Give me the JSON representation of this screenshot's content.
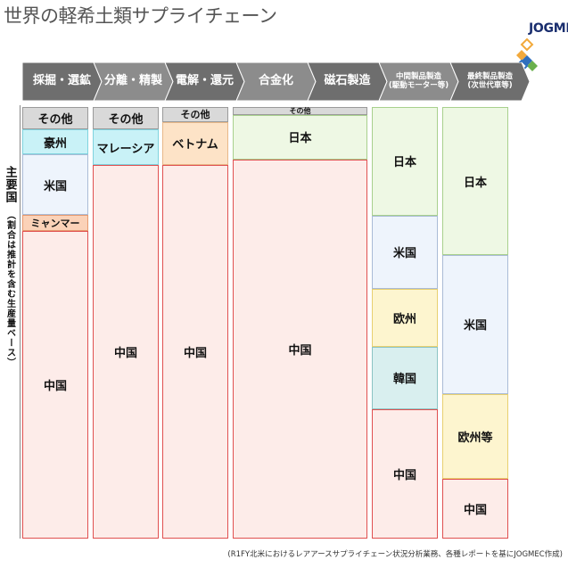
{
  "title": "世界の軽希土類サプライチェーン",
  "logo": {
    "text": "JOGMEC"
  },
  "side_label": {
    "main": "主要国",
    "sub": "（割合は推計を含む生産量ベース）"
  },
  "footer": "(R1FY北米におけるレアアースサプライチェーン状況分析業務、各種レポートを基にJOGMEC作成)",
  "colors": {
    "banner_dark": "#6e6e6e",
    "banner_light": "#8c8c8c",
    "other": "#d9d9d9",
    "australia": "#c9f2f7",
    "usa": "#eef4fc",
    "myanmar": "#fbd2b8",
    "china": "#fdece9",
    "malaysia": "#c9f2f7",
    "vietnam": "#fde3c7",
    "japan": "#eef8e4",
    "europe": "#fdf5cf",
    "korea": "#d9efef"
  },
  "stages": [
    {
      "label": "採掘・選鉱",
      "small": false
    },
    {
      "label": "分離・精製",
      "small": false
    },
    {
      "label": "電解・還元",
      "small": false
    },
    {
      "label": "合金化",
      "small": false
    },
    {
      "label": "磁石製造",
      "small": false
    },
    {
      "label": "中間製品製造\n(駆動モーター等)",
      "small": true
    },
    {
      "label": "最終製品製造\n(次世代車等)",
      "small": true
    }
  ],
  "columns": [
    {
      "stage": "採掘・選鉱",
      "segments": [
        {
          "label": "その他",
          "share": 0.052,
          "color_key": "other",
          "border": "#9a9a9a"
        },
        {
          "label": "豪州",
          "share": 0.058,
          "color_key": "australia",
          "border": "#7fd3de"
        },
        {
          "label": "米国",
          "share": 0.14,
          "color_key": "usa",
          "border": "#aabbd6"
        },
        {
          "label": "ミャンマー",
          "share": 0.038,
          "color_key": "myanmar",
          "border": "#e79a6f"
        },
        {
          "label": "中国",
          "share": 0.712,
          "color_key": "china",
          "border": "#e05050"
        }
      ]
    },
    {
      "stage": "分離・精製",
      "segments": [
        {
          "label": "その他",
          "share": 0.052,
          "color_key": "other",
          "border": "#9a9a9a"
        },
        {
          "label": "マレーシア",
          "share": 0.082,
          "color_key": "malaysia",
          "border": "#7fd3de"
        },
        {
          "label": "中国",
          "share": 0.866,
          "color_key": "china",
          "border": "#e05050"
        }
      ]
    },
    {
      "stage": "電解・還元",
      "segments": [
        {
          "label": "その他",
          "share": 0.035,
          "color_key": "other",
          "border": "#9a9a9a"
        },
        {
          "label": "ベトナム",
          "share": 0.099,
          "color_key": "vietnam",
          "border": "#e8b888"
        },
        {
          "label": "中国",
          "share": 0.866,
          "color_key": "china",
          "border": "#e05050"
        }
      ]
    },
    {
      "stage": "合金化・磁石製造",
      "segments": [
        {
          "label": "その他",
          "share": 0.018,
          "color_key": "other",
          "border": "#9a9a9a"
        },
        {
          "label": "日本",
          "share": 0.103,
          "color_key": "japan",
          "border": "#a8d08d"
        },
        {
          "label": "中国",
          "share": 0.879,
          "color_key": "china",
          "border": "#e05050"
        }
      ]
    },
    {
      "stage": "中間製品製造",
      "segments": [
        {
          "label": "日本",
          "share": 0.252,
          "color_key": "japan",
          "border": "#a8d08d"
        },
        {
          "label": "米国",
          "share": 0.169,
          "color_key": "usa",
          "border": "#aabbd6"
        },
        {
          "label": "欧州",
          "share": 0.134,
          "color_key": "europe",
          "border": "#e8d070"
        },
        {
          "label": "韓国",
          "share": 0.145,
          "color_key": "korea",
          "border": "#8cc4c4"
        },
        {
          "label": "中国",
          "share": 0.3,
          "color_key": "china",
          "border": "#e05050"
        }
      ]
    },
    {
      "stage": "最終製品製造",
      "segments": [
        {
          "label": "日本",
          "share": 0.343,
          "color_key": "japan",
          "border": "#a8d08d"
        },
        {
          "label": "米国",
          "share": 0.322,
          "color_key": "usa",
          "border": "#aabbd6"
        },
        {
          "label": "欧州等",
          "share": 0.196,
          "color_key": "europe",
          "border": "#e8d070"
        },
        {
          "label": "中国",
          "share": 0.139,
          "color_key": "china",
          "border": "#e05050"
        }
      ]
    }
  ]
}
